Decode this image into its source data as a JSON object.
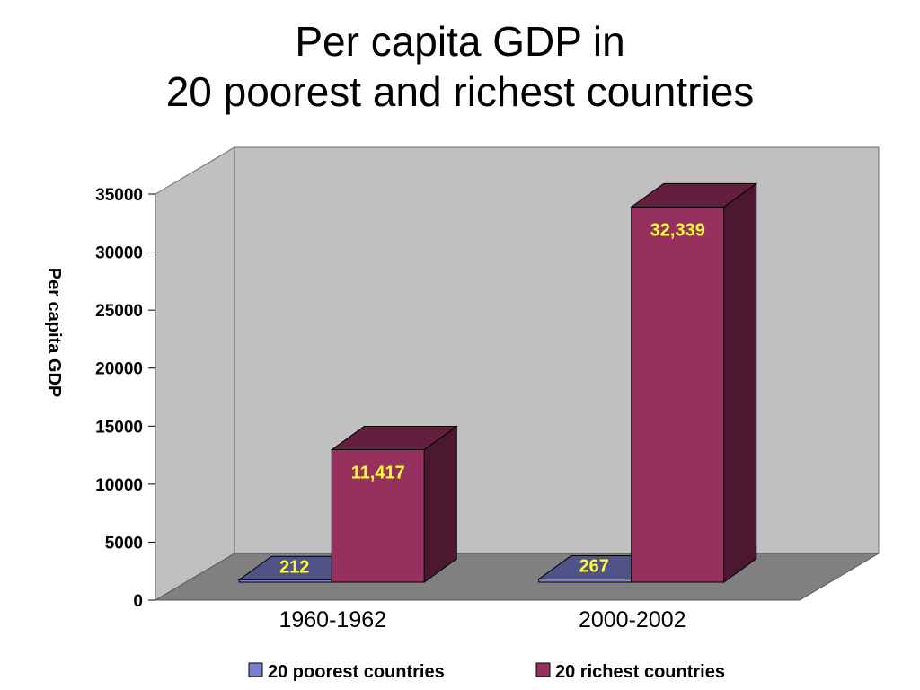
{
  "slide": {
    "title_line1": "Per capita GDP in",
    "title_line2": "20 poorest and richest countries"
  },
  "chart_data": {
    "type": "bar",
    "style": "3d-clustered-column",
    "ylabel": "Per capita GDP",
    "ylim": [
      0,
      35000
    ],
    "yticks": [
      "0",
      "5000",
      "10000",
      "15000",
      "20000",
      "25000",
      "30000",
      "35000"
    ],
    "categories": [
      "1960-1962",
      "2000-2002"
    ],
    "series": [
      {
        "name": "20 poorest countries",
        "color": "#7b7fd0",
        "values": [
          212,
          267
        ],
        "labels": [
          "212",
          "267"
        ]
      },
      {
        "name": "20 richest countries",
        "color": "#96305f",
        "values": [
          11417,
          32339
        ],
        "labels": [
          "11,417",
          "32,339"
        ]
      }
    ],
    "legend_position": "bottom",
    "wall_color": "#c0c0c0",
    "floor_color": "#808080",
    "label_color": "#ffff33"
  }
}
